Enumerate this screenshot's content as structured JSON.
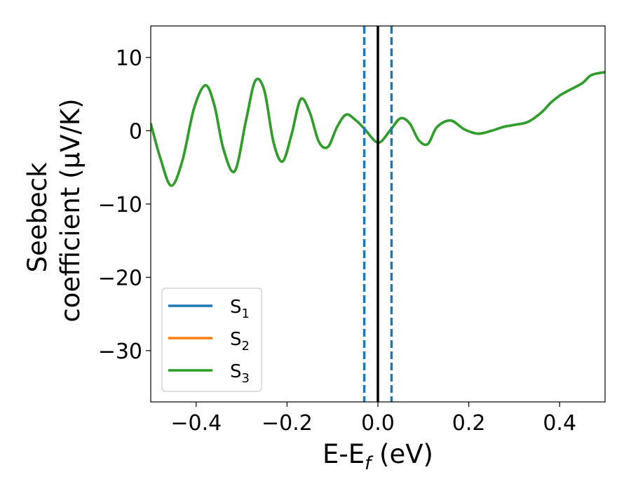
{
  "chart_data": {
    "type": "line",
    "xlabel_main": "E-E",
    "xlabel_sub": "f",
    "xlabel_tail": " (eV)",
    "ylabel_line1": "Seebeck",
    "ylabel_line2": "coefficient  (μV/K)",
    "xlim": [
      -0.5,
      0.5
    ],
    "ylim": [
      -37,
      14.3
    ],
    "xticks": [
      -0.4,
      -0.2,
      0.0,
      0.2,
      0.4
    ],
    "xtick_labels": [
      "−0.4",
      "−0.2",
      "0.0",
      "0.2",
      "0.4"
    ],
    "yticks": [
      10,
      0,
      -10,
      -20,
      -30
    ],
    "ytick_labels": [
      "10",
      "0",
      "−10",
      "−20",
      "−30"
    ],
    "grid": false,
    "legend_placement": "lower-left",
    "colors": {
      "s1": "#1f77b4",
      "s2": "#ff7f0e",
      "s3": "#2ca02c",
      "fermi_line": "#000000"
    },
    "vertical_lines": [
      {
        "x": 0.0,
        "color": "#000000",
        "style": "solid"
      },
      {
        "x": -0.03,
        "color": "#1f77b4",
        "style": "dashed"
      },
      {
        "x": 0.03,
        "color": "#1f77b4",
        "style": "dashed"
      }
    ],
    "x": [
      -0.5,
      -0.48,
      -0.455,
      -0.43,
      -0.405,
      -0.38,
      -0.36,
      -0.34,
      -0.315,
      -0.29,
      -0.27,
      -0.25,
      -0.23,
      -0.21,
      -0.19,
      -0.17,
      -0.15,
      -0.13,
      -0.11,
      -0.09,
      -0.07,
      -0.05,
      -0.03,
      -0.01,
      0.0,
      0.01,
      0.03,
      0.05,
      0.07,
      0.09,
      0.11,
      0.13,
      0.16,
      0.19,
      0.22,
      0.25,
      0.275,
      0.3,
      0.33,
      0.36,
      0.38,
      0.4,
      0.42,
      0.45,
      0.47,
      0.5
    ],
    "series": [
      {
        "name": "S",
        "sub": "1",
        "color_key": "s1",
        "values": [
          1.0,
          -3.5,
          -7.5,
          -4.0,
          3.0,
          6.2,
          3.5,
          -2.5,
          -5.5,
          1.5,
          6.8,
          5.5,
          -1.5,
          -4.2,
          -0.5,
          4.3,
          2.5,
          -1.5,
          -2.2,
          0.5,
          2.2,
          1.5,
          0.3,
          -1.2,
          -1.6,
          -1.3,
          0.3,
          1.7,
          1.0,
          -1.3,
          -1.8,
          0.5,
          1.4,
          0.2,
          -0.4,
          0.0,
          0.5,
          0.8,
          1.2,
          2.5,
          3.8,
          4.8,
          5.5,
          6.5,
          7.6,
          8.0
        ]
      },
      {
        "name": "S",
        "sub": "2",
        "color_key": "s2",
        "values": [
          1.0,
          -3.5,
          -7.5,
          -4.0,
          3.0,
          6.2,
          3.5,
          -2.5,
          -5.5,
          1.5,
          6.8,
          5.5,
          -1.5,
          -4.2,
          -0.5,
          4.3,
          2.5,
          -1.5,
          -2.2,
          0.5,
          2.2,
          1.5,
          0.3,
          -1.2,
          -1.6,
          -1.3,
          0.3,
          1.7,
          1.0,
          -1.3,
          -1.8,
          0.5,
          1.4,
          0.2,
          -0.4,
          0.0,
          0.5,
          0.8,
          1.2,
          2.5,
          3.8,
          4.8,
          5.5,
          6.5,
          7.6,
          8.0
        ]
      },
      {
        "name": "S",
        "sub": "3",
        "color_key": "s3",
        "values": [
          1.0,
          -3.5,
          -7.5,
          -4.0,
          3.0,
          6.2,
          3.5,
          -2.5,
          -5.5,
          1.5,
          6.8,
          5.5,
          -1.5,
          -4.2,
          -0.5,
          4.3,
          2.5,
          -1.5,
          -2.2,
          0.5,
          2.2,
          1.5,
          0.3,
          -1.2,
          -1.6,
          -1.3,
          0.3,
          1.7,
          1.0,
          -1.3,
          -1.8,
          0.5,
          1.4,
          0.2,
          -0.4,
          0.0,
          0.5,
          0.8,
          1.2,
          2.5,
          3.8,
          4.8,
          5.5,
          6.5,
          7.6,
          8.0
        ]
      }
    ]
  }
}
